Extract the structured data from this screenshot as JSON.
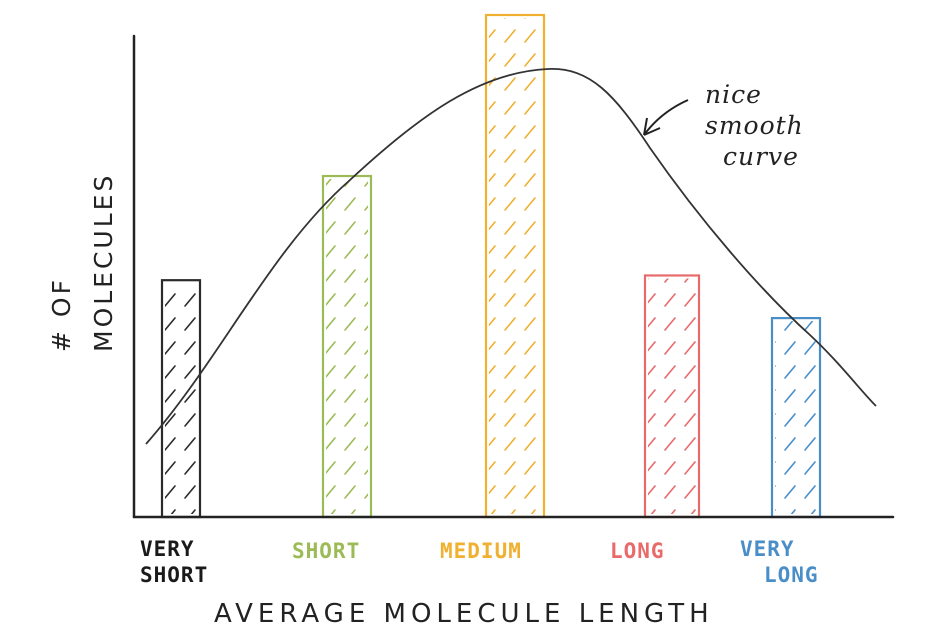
{
  "chart_data": {
    "type": "bar",
    "categories": [
      {
        "line1": "VERY",
        "line2": "SHORT"
      },
      {
        "line1": "SHORT",
        "line2": ""
      },
      {
        "line1": "MEDIUM",
        "line2": ""
      },
      {
        "line1": "LONG",
        "line2": ""
      },
      {
        "line1": "VERY",
        "line2": "LONG"
      }
    ],
    "values": [
      5.0,
      7.2,
      10.6,
      5.1,
      4.2
    ],
    "bar_colors": [
      "#2b2b2b",
      "#9cbb56",
      "#f0b030",
      "#e86a6a",
      "#4a8ec8"
    ],
    "curve": {
      "label_lines": [
        "nice",
        "smooth",
        "curve"
      ],
      "color": "#333333"
    },
    "xlabel": "AVERAGE MOLECULE LENGTH",
    "ylabel_lines": [
      "# OF",
      "MOLECULES"
    ],
    "ylim": [
      0,
      10.6
    ],
    "grid": false,
    "legend": "none"
  }
}
